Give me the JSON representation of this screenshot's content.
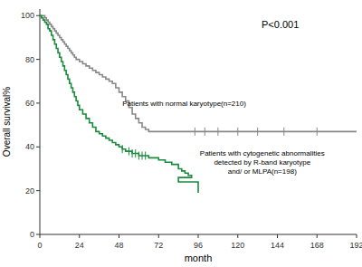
{
  "chart_data": {
    "type": "step",
    "annotations": [
      {
        "text": "P<0.001"
      },
      {
        "text": "Patients with normal karyotype(n=210)",
        "x": 50,
        "y": 60
      },
      {
        "text": "Patients with cytogenetic abnormalities\ndetected by R-band karyotype\nand/ or MLPA(n=198)",
        "x": 97,
        "y": 33
      }
    ],
    "x_label": "month",
    "y_label": "Overall survival%",
    "xlim": [
      0,
      192
    ],
    "ylim": [
      0,
      103
    ],
    "xticks": [
      0,
      24,
      48,
      72,
      96,
      120,
      144,
      168,
      192
    ],
    "yticks": [
      0,
      20,
      40,
      60,
      80,
      100
    ],
    "grid": false,
    "series": [
      {
        "color": "#888888",
        "x": [
          0,
          3,
          4,
          5,
          6,
          7,
          8,
          9,
          10,
          11,
          12,
          13,
          14,
          15,
          16,
          17,
          18,
          19,
          20,
          21,
          22,
          24,
          26,
          28,
          30,
          32,
          34,
          36,
          38,
          40,
          42,
          44,
          46,
          48,
          50,
          52,
          54,
          56,
          58,
          60,
          62,
          64,
          66,
          68,
          70,
          72,
          192
        ],
        "values": [
          100,
          99,
          98,
          97,
          96,
          95,
          94,
          93,
          92,
          91,
          90,
          89,
          88,
          87,
          86,
          85,
          84,
          83,
          82,
          81,
          80,
          79,
          78,
          77,
          76,
          75,
          74,
          73,
          72,
          71,
          70,
          69,
          67,
          65,
          63,
          61,
          58,
          55,
          53,
          51,
          49,
          48,
          47,
          47,
          47,
          47,
          47
        ],
        "censor_x": [
          94,
          100,
          108,
          120,
          132,
          148,
          168
        ],
        "censor_values": [
          47,
          47,
          47,
          47,
          47,
          47,
          47
        ]
      },
      {
        "color": "#1a8a3c",
        "x": [
          0,
          1,
          2,
          3,
          4,
          5,
          6,
          7,
          8,
          9,
          10,
          11,
          12,
          13,
          14,
          15,
          16,
          17,
          18,
          19,
          20,
          21,
          22,
          23,
          24,
          26,
          28,
          30,
          32,
          34,
          36,
          38,
          40,
          42,
          44,
          46,
          48,
          50,
          52,
          54,
          56,
          58,
          60,
          62,
          64,
          66,
          68,
          70,
          72,
          74,
          76,
          78,
          80,
          82,
          84,
          86,
          88,
          90,
          92,
          84,
          96
        ],
        "values": [
          100,
          99,
          98,
          97,
          96,
          94,
          93,
          91,
          89,
          87,
          85,
          83,
          81,
          79,
          77,
          75,
          73,
          71,
          69,
          67,
          65,
          63,
          61,
          59,
          57,
          55,
          53,
          51,
          49,
          47,
          46,
          45,
          44,
          43,
          42,
          41,
          40,
          39,
          38,
          38,
          37,
          37,
          36,
          36,
          36,
          35,
          35,
          35,
          34,
          34,
          33,
          33,
          32,
          32,
          30,
          29,
          28,
          27,
          26,
          24,
          19
        ],
        "censor_x": [
          50,
          54,
          56,
          58,
          60,
          62,
          64
        ],
        "censor_values": [
          39,
          38,
          37,
          37,
          36,
          36,
          36
        ]
      }
    ]
  }
}
